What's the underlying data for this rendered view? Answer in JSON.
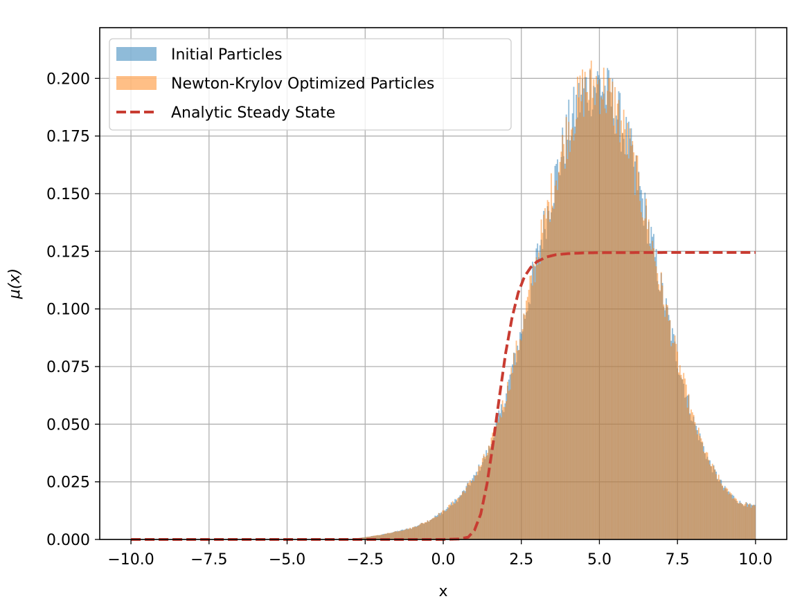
{
  "chart_data": {
    "type": "bar",
    "title": "",
    "xlabel": "x",
    "ylabel": "μ(x)",
    "xlim": [
      -11.0,
      11.0
    ],
    "ylim": [
      0.0,
      0.222
    ],
    "grid": true,
    "legend_placement": "top-left",
    "x_ticks": [
      -10.0,
      -7.5,
      -5.0,
      -2.5,
      0.0,
      2.5,
      5.0,
      7.5,
      10.0
    ],
    "x_tick_labels": [
      "−10.0",
      "−7.5",
      "−5.0",
      "−2.5",
      "0.0",
      "2.5",
      "5.0",
      "7.5",
      "10.0"
    ],
    "y_ticks": [
      0.0,
      0.025,
      0.05,
      0.075,
      0.1,
      0.125,
      0.15,
      0.175,
      0.2
    ],
    "y_tick_labels": [
      "0.000",
      "0.025",
      "0.050",
      "0.075",
      "0.100",
      "0.125",
      "0.150",
      "0.175",
      "0.200"
    ],
    "histogram_profile": {
      "x_range": [
        -10.0,
        10.0
      ],
      "bin_count": 500,
      "x": [
        -10.0,
        -3.0,
        -2.0,
        -1.0,
        -0.5,
        0.0,
        0.5,
        1.0,
        1.5,
        2.0,
        2.5,
        3.0,
        3.5,
        4.0,
        4.5,
        5.0,
        5.5,
        6.0,
        6.5,
        7.0,
        7.5,
        8.0,
        8.5,
        9.0,
        9.5,
        10.0
      ],
      "y": [
        0.0,
        0.0,
        0.002,
        0.005,
        0.008,
        0.012,
        0.018,
        0.027,
        0.04,
        0.062,
        0.09,
        0.122,
        0.152,
        0.178,
        0.195,
        0.198,
        0.188,
        0.168,
        0.14,
        0.108,
        0.078,
        0.052,
        0.034,
        0.022,
        0.016,
        0.014
      ]
    },
    "series": [
      {
        "name": "Initial Particles",
        "kind": "histogram",
        "color": "#1f77b4",
        "opacity": 0.5
      },
      {
        "name": "Newton-Krylov Optimized Particles",
        "kind": "histogram",
        "color": "#ff7f0e",
        "opacity": 0.5
      },
      {
        "name": "Analytic Steady State",
        "kind": "line",
        "style": "dashed",
        "color": "#c83c32",
        "x": [
          -10.0,
          -2.0,
          0.0,
          0.5,
          0.8,
          1.0,
          1.2,
          1.4,
          1.6,
          1.8,
          2.0,
          2.2,
          2.4,
          2.6,
          2.8,
          3.0,
          3.3,
          3.6,
          4.0,
          4.5,
          5.0,
          7.5,
          10.0
        ],
        "y": [
          0.0,
          0.0,
          0.0,
          0.0002,
          0.001,
          0.004,
          0.011,
          0.024,
          0.042,
          0.062,
          0.081,
          0.096,
          0.107,
          0.114,
          0.118,
          0.1205,
          0.1225,
          0.1235,
          0.124,
          0.1243,
          0.1244,
          0.1245,
          0.1245
        ]
      }
    ]
  }
}
